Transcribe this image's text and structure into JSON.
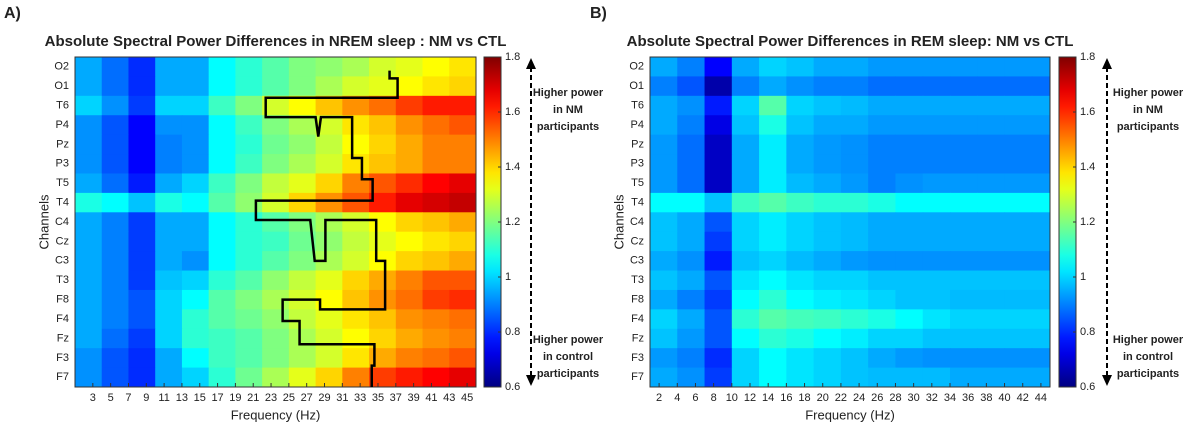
{
  "chart_data": [
    {
      "type": "heatmap",
      "panel_label": "A)",
      "title": "Absolute Spectral Power Differences in NREM sleep : NM vs CTL",
      "xlabel": "Frequency (Hz)",
      "ylabel": "Channels",
      "categories": [
        "O2",
        "O1",
        "T6",
        "P4",
        "Pz",
        "P3",
        "T5",
        "T4",
        "C4",
        "Cz",
        "C3",
        "T3",
        "F8",
        "F4",
        "Fz",
        "F3",
        "F7"
      ],
      "bins": [
        1,
        4,
        7,
        10,
        13,
        16,
        19,
        22,
        25,
        28,
        31,
        34,
        37,
        40,
        43,
        46
      ],
      "xlim": [
        1,
        46
      ],
      "xticks": [
        3,
        5,
        7,
        9,
        11,
        13,
        15,
        17,
        19,
        21,
        23,
        25,
        27,
        29,
        31,
        33,
        35,
        37,
        39,
        41,
        43,
        45
      ],
      "z": [
        [
          0.95,
          0.88,
          0.8,
          0.95,
          0.95,
          1.05,
          1.1,
          1.15,
          1.2,
          1.22,
          1.25,
          1.3,
          1.32,
          1.35,
          1.38
        ],
        [
          0.95,
          0.88,
          0.8,
          0.95,
          0.95,
          1.05,
          1.1,
          1.15,
          1.2,
          1.25,
          1.3,
          1.32,
          1.35,
          1.38,
          1.4
        ],
        [
          1.0,
          0.92,
          0.82,
          1.0,
          1.0,
          1.12,
          1.2,
          1.3,
          1.35,
          1.42,
          1.48,
          1.52,
          1.58,
          1.62,
          1.62
        ],
        [
          0.92,
          0.85,
          0.75,
          0.92,
          0.92,
          1.05,
          1.12,
          1.2,
          1.25,
          1.3,
          1.38,
          1.42,
          1.48,
          1.52,
          1.55
        ],
        [
          0.92,
          0.85,
          0.75,
          0.9,
          0.92,
          1.05,
          1.1,
          1.18,
          1.22,
          1.28,
          1.35,
          1.4,
          1.45,
          1.5,
          1.5
        ],
        [
          0.92,
          0.85,
          0.75,
          0.9,
          0.92,
          1.05,
          1.12,
          1.2,
          1.25,
          1.3,
          1.38,
          1.42,
          1.45,
          1.5,
          1.5
        ],
        [
          0.95,
          0.88,
          0.78,
          0.95,
          1.0,
          1.12,
          1.2,
          1.28,
          1.32,
          1.4,
          1.5,
          1.55,
          1.6,
          1.65,
          1.68
        ],
        [
          1.08,
          1.05,
          0.98,
          1.08,
          1.05,
          1.15,
          1.22,
          1.3,
          1.4,
          1.48,
          1.55,
          1.62,
          1.68,
          1.7,
          1.72
        ],
        [
          0.95,
          0.9,
          0.82,
          0.95,
          0.95,
          1.05,
          1.1,
          1.15,
          1.2,
          1.25,
          1.3,
          1.35,
          1.4,
          1.42,
          1.45
        ],
        [
          0.95,
          0.9,
          0.82,
          0.95,
          0.95,
          1.05,
          1.1,
          1.12,
          1.18,
          1.22,
          1.28,
          1.32,
          1.35,
          1.38,
          1.4
        ],
        [
          0.95,
          0.9,
          0.82,
          0.95,
          0.92,
          1.05,
          1.1,
          1.15,
          1.2,
          1.25,
          1.3,
          1.35,
          1.4,
          1.42,
          1.45
        ],
        [
          0.95,
          0.9,
          0.82,
          0.98,
          1.0,
          1.1,
          1.15,
          1.22,
          1.28,
          1.32,
          1.4,
          1.45,
          1.5,
          1.55,
          1.55
        ],
        [
          0.95,
          0.9,
          0.85,
          1.0,
          1.05,
          1.15,
          1.2,
          1.25,
          1.3,
          1.35,
          1.42,
          1.48,
          1.52,
          1.58,
          1.6
        ],
        [
          0.95,
          0.9,
          0.85,
          1.0,
          1.1,
          1.15,
          1.18,
          1.22,
          1.28,
          1.32,
          1.38,
          1.42,
          1.48,
          1.5,
          1.52
        ],
        [
          0.95,
          0.88,
          0.82,
          1.0,
          1.1,
          1.12,
          1.15,
          1.2,
          1.25,
          1.3,
          1.35,
          1.4,
          1.45,
          1.48,
          1.5
        ],
        [
          0.92,
          0.85,
          0.8,
          0.95,
          1.05,
          1.12,
          1.15,
          1.2,
          1.25,
          1.3,
          1.38,
          1.45,
          1.5,
          1.52,
          1.55
        ],
        [
          0.92,
          0.85,
          0.8,
          0.95,
          1.0,
          1.1,
          1.18,
          1.25,
          1.32,
          1.4,
          1.5,
          1.58,
          1.62,
          1.65,
          1.68
        ]
      ],
      "contour": {
        "x": [
          36.3,
          36.3,
          37.2,
          37.2,
          22.4,
          22.4,
          28.0,
          28.3,
          28.6,
          32.1,
          32.1,
          33.2,
          33.2,
          34.4,
          34.4,
          21.3,
          21.3,
          27.4,
          27.9,
          29.1,
          29.1,
          34.8,
          34.8,
          35.8,
          35.8,
          28.5,
          28.5,
          24.3,
          24.3,
          26.2,
          26.2,
          34.6,
          34.6,
          34.3,
          34.3
        ],
        "y": [
          0.7,
          1.1,
          1.1,
          2.1,
          2.1,
          3.1,
          3.1,
          4.1,
          3.1,
          3.1,
          5.2,
          5.2,
          6.3,
          6.3,
          7.4,
          7.4,
          8.4,
          8.4,
          10.5,
          10.5,
          8.4,
          8.4,
          10.5,
          10.5,
          13.0,
          13.0,
          12.5,
          12.5,
          13.6,
          13.6,
          14.8,
          14.8,
          15.9,
          15.9,
          17.0
        ]
      },
      "colorbar": {
        "colormap": "jet",
        "lim": [
          0.6,
          1.8
        ],
        "ticks": [
          0.6,
          0.8,
          1,
          1.2,
          1.4,
          1.6,
          1.8
        ],
        "top_label": [
          "Higher power",
          "in NM",
          "participants"
        ],
        "bottom_label": [
          "Higher power",
          "in control",
          "participants"
        ]
      }
    },
    {
      "type": "heatmap",
      "panel_label": "B)",
      "title": "Absolute Spectral Power Differences in REM sleep: NM vs CTL",
      "xlabel": "Frequency (Hz)",
      "ylabel": "Channels",
      "categories": [
        "O2",
        "O1",
        "T6",
        "P4",
        "Pz",
        "P3",
        "T5",
        "T4",
        "C4",
        "Cz",
        "C3",
        "T3",
        "F8",
        "F4",
        "Fz",
        "F3",
        "F7"
      ],
      "bins": [
        1,
        4,
        7,
        10,
        13,
        16,
        19,
        22,
        25,
        28,
        31,
        34,
        37,
        40,
        43,
        45
      ],
      "xlim": [
        1,
        45
      ],
      "xticks": [
        2,
        4,
        6,
        8,
        10,
        12,
        14,
        16,
        18,
        20,
        22,
        24,
        26,
        28,
        30,
        32,
        34,
        36,
        38,
        40,
        42,
        44
      ],
      "z": [
        [
          0.95,
          0.9,
          0.75,
          0.95,
          1.0,
          0.98,
          0.95,
          0.95,
          0.93,
          0.93,
          0.93,
          0.93,
          0.93,
          0.93,
          0.93
        ],
        [
          0.9,
          0.85,
          0.65,
          0.9,
          0.95,
          0.92,
          0.9,
          0.9,
          0.88,
          0.88,
          0.88,
          0.88,
          0.88,
          0.88,
          0.88
        ],
        [
          0.95,
          0.92,
          0.78,
          1.0,
          1.15,
          1.0,
          0.98,
          0.97,
          0.95,
          0.95,
          0.95,
          0.95,
          0.95,
          0.95,
          0.95
        ],
        [
          0.95,
          0.9,
          0.72,
          0.98,
          1.08,
          0.98,
          0.95,
          0.95,
          0.93,
          0.93,
          0.93,
          0.93,
          0.93,
          0.93,
          0.93
        ],
        [
          0.93,
          0.88,
          0.68,
          0.95,
          1.03,
          0.95,
          0.93,
          0.92,
          0.9,
          0.9,
          0.9,
          0.9,
          0.9,
          0.9,
          0.9
        ],
        [
          0.93,
          0.88,
          0.68,
          0.95,
          1.03,
          0.95,
          0.93,
          0.92,
          0.9,
          0.9,
          0.9,
          0.9,
          0.9,
          0.9,
          0.9
        ],
        [
          0.93,
          0.88,
          0.68,
          0.95,
          1.03,
          0.97,
          0.95,
          0.93,
          0.9,
          0.92,
          0.93,
          0.93,
          0.93,
          0.93,
          0.93
        ],
        [
          1.05,
          1.05,
          0.98,
          1.12,
          1.15,
          1.12,
          1.1,
          1.1,
          1.08,
          1.05,
          1.05,
          1.05,
          1.05,
          1.05,
          1.05
        ],
        [
          0.98,
          0.95,
          0.85,
          1.0,
          1.03,
          1.0,
          0.98,
          0.97,
          0.95,
          0.95,
          0.95,
          0.95,
          0.95,
          0.95,
          0.95
        ],
        [
          0.98,
          0.95,
          0.82,
          1.0,
          1.03,
          1.0,
          0.98,
          0.97,
          0.95,
          0.95,
          0.95,
          0.95,
          0.95,
          0.95,
          0.95
        ],
        [
          0.95,
          0.92,
          0.78,
          0.98,
          1.0,
          0.97,
          0.95,
          0.93,
          0.92,
          0.92,
          0.92,
          0.92,
          0.92,
          0.92,
          0.92
        ],
        [
          0.98,
          0.95,
          0.85,
          1.02,
          1.05,
          1.02,
          1.0,
          1.0,
          0.98,
          0.98,
          0.98,
          0.98,
          0.98,
          0.98,
          0.98
        ],
        [
          0.95,
          0.9,
          0.82,
          1.05,
          1.1,
          1.05,
          1.03,
          1.02,
          1.0,
          0.98,
          0.98,
          0.97,
          0.97,
          0.97,
          0.97
        ],
        [
          1.0,
          0.95,
          0.85,
          1.1,
          1.15,
          1.13,
          1.12,
          1.1,
          1.08,
          1.05,
          1.02,
          1.0,
          1.0,
          1.0,
          1.0
        ],
        [
          0.98,
          0.93,
          0.85,
          1.05,
          1.1,
          1.08,
          1.05,
          1.03,
          1.0,
          1.0,
          0.98,
          0.98,
          0.98,
          0.98,
          0.98
        ],
        [
          0.93,
          0.9,
          0.8,
          1.0,
          1.05,
          1.02,
          1.0,
          0.98,
          0.95,
          0.93,
          0.92,
          0.92,
          0.92,
          0.92,
          0.92
        ],
        [
          0.95,
          0.92,
          0.82,
          1.0,
          1.05,
          1.02,
          1.0,
          0.98,
          0.97,
          0.97,
          0.97,
          0.95,
          0.95,
          0.95,
          0.95
        ]
      ],
      "colorbar": {
        "colormap": "jet",
        "lim": [
          0.6,
          1.8
        ],
        "ticks": [
          0.6,
          0.8,
          1,
          1.2,
          1.4,
          1.6,
          1.8
        ],
        "top_label": [
          "Higher power",
          "in NM",
          "participants"
        ],
        "bottom_label": [
          "Higher power",
          "in control",
          "participants"
        ]
      }
    }
  ]
}
